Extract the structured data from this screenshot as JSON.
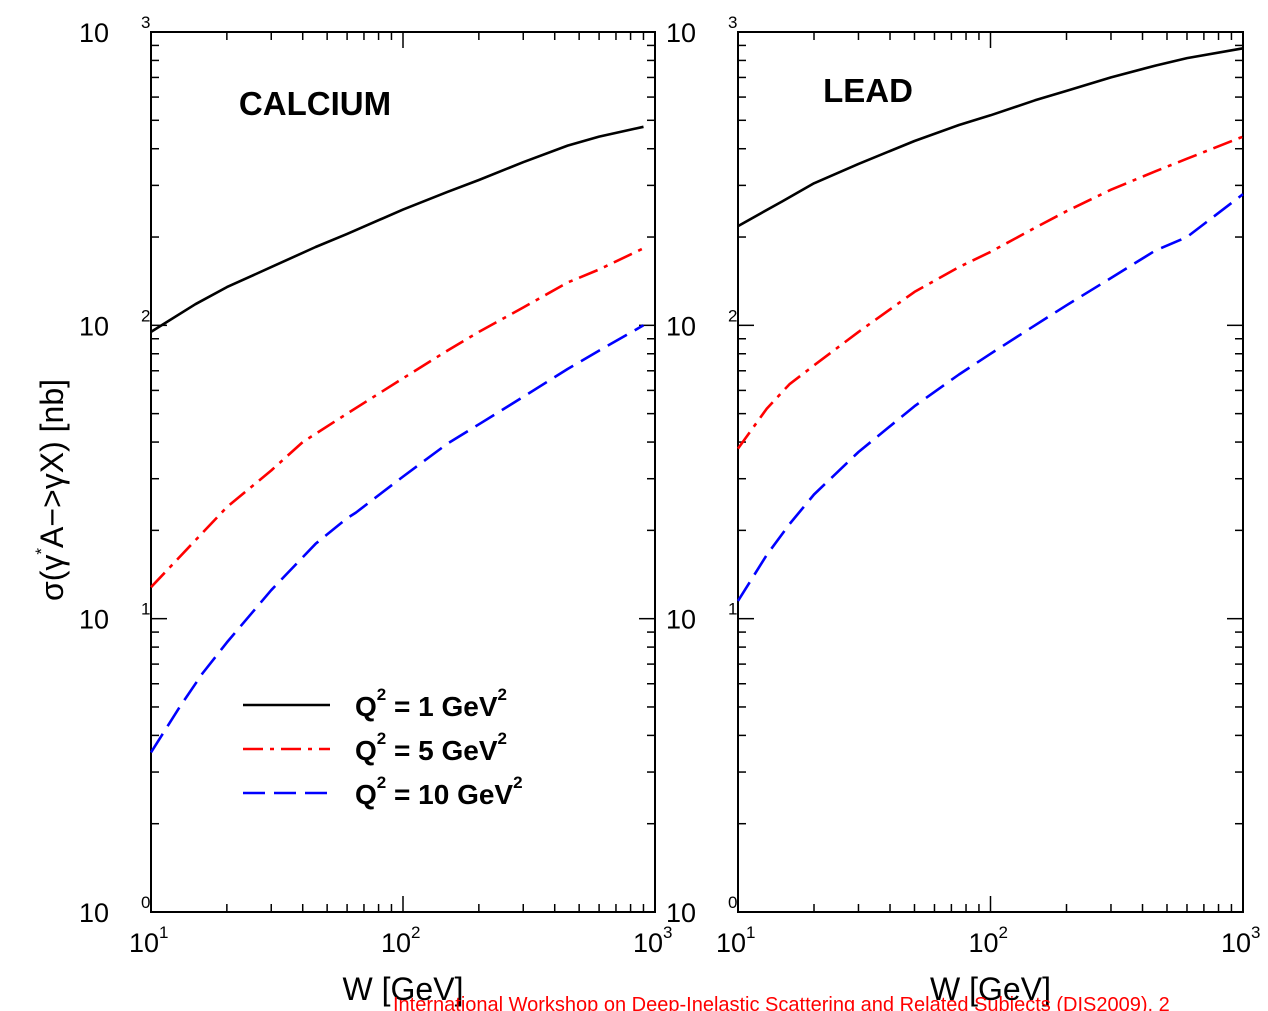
{
  "footer": {
    "text": "International Workshop on Deep-Inelastic Scattering and Related Subjects (DIS2009), 2"
  },
  "ylabel": {
    "text": "σ(γ",
    "sup": "*",
    "rest": "A−>γX) [nb]"
  },
  "legend": [
    {
      "label": "Q",
      "sup1": "2",
      "mid": " = 1 GeV",
      "sup2": "2",
      "color": "#000000"
    },
    {
      "label": "Q",
      "sup1": "2",
      "mid": " = 5 GeV",
      "sup2": "2",
      "color": "#ff0000"
    },
    {
      "label": "Q",
      "sup1": "2",
      "mid": " = 10 GeV",
      "sup2": "2",
      "color": "#0000ff"
    }
  ],
  "tick_labels": {
    "base": "10",
    "exponents": [
      "0",
      "1",
      "2",
      "3"
    ]
  },
  "chart_data": [
    {
      "type": "line",
      "title": "CALCIUM",
      "xlabel": "W [GeV]",
      "ylabel": "σ(γ*A−>γX) [nb]",
      "xscale": "log",
      "yscale": "log",
      "xlim": [
        10,
        1000
      ],
      "ylim": [
        1,
        1000
      ],
      "legend": "bottom-left",
      "series": [
        {
          "name": "Q² = 1 GeV²",
          "color": "#000000",
          "dash": "solid",
          "x": [
            10,
            15,
            20,
            30,
            45,
            60,
            100,
            150,
            200,
            300,
            450,
            600,
            900
          ],
          "y": [
            95,
            118,
            135,
            158,
            185,
            205,
            248,
            285,
            313,
            360,
            410,
            440,
            475
          ]
        },
        {
          "name": "Q² = 5 GeV²",
          "color": "#ff0000",
          "dash": "dashdot",
          "x": [
            10,
            15,
            20,
            30,
            40,
            60,
            100,
            150,
            200,
            300,
            450,
            600,
            900
          ],
          "y": [
            12.8,
            18.5,
            24,
            32,
            40,
            50,
            66,
            82,
            95,
            115,
            140,
            155,
            183
          ]
        },
        {
          "name": "Q² = 10 GeV²",
          "color": "#0000ff",
          "dash": "dashed",
          "x": [
            10,
            13,
            16,
            20,
            30,
            45,
            60,
            65,
            100,
            150,
            200,
            300,
            450,
            600,
            900
          ],
          "y": [
            3.5,
            5.0,
            6.5,
            8.3,
            12.5,
            18,
            22,
            23,
            30.5,
            39.5,
            46,
            57,
            71,
            82,
            100
          ]
        }
      ]
    },
    {
      "type": "line",
      "title": "LEAD",
      "xlabel": "W [GeV]",
      "ylabel": "",
      "xscale": "log",
      "yscale": "log",
      "xlim": [
        10,
        1000
      ],
      "ylim": [
        1,
        1000
      ],
      "series": [
        {
          "name": "Q² = 1 GeV²",
          "color": "#000000",
          "dash": "solid",
          "x": [
            10,
            15,
            20,
            30,
            50,
            75,
            100,
            150,
            200,
            300,
            450,
            600,
            1000
          ],
          "y": [
            218,
            265,
            305,
            355,
            425,
            482,
            520,
            585,
            630,
            700,
            768,
            815,
            880
          ]
        },
        {
          "name": "Q² = 5 GeV²",
          "color": "#ff0000",
          "dash": "dashdot",
          "x": [
            10,
            13,
            16,
            20,
            30,
            50,
            75,
            100,
            150,
            200,
            300,
            450,
            600,
            1000
          ],
          "y": [
            38,
            52,
            63,
            73,
            95,
            130,
            158,
            178,
            215,
            245,
            290,
            335,
            370,
            440
          ]
        },
        {
          "name": "Q² = 10 GeV²",
          "color": "#0000ff",
          "dash": "dashed",
          "x": [
            10,
            13,
            16,
            20,
            30,
            50,
            75,
            100,
            150,
            200,
            300,
            450,
            600,
            1000
          ],
          "y": [
            11.5,
            16.5,
            21,
            26.5,
            37,
            53,
            68,
            80,
            100,
            117,
            145,
            180,
            200,
            280
          ]
        }
      ]
    }
  ]
}
